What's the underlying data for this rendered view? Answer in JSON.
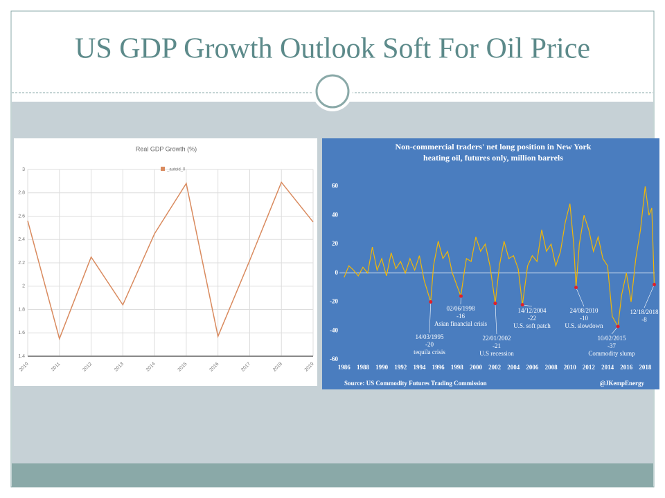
{
  "slide": {
    "title": "US GDP Growth Outlook Soft For Oil Price"
  },
  "chart_data": [
    {
      "type": "line",
      "title": "Real GDP Growth (%)",
      "x": [
        2010,
        2011,
        2012,
        2013,
        2014,
        2015,
        2016,
        2017,
        2018,
        2019
      ],
      "series": [
        {
          "name": "_autoid_0",
          "color": "#d98a5e",
          "values": [
            2.56,
            1.55,
            2.25,
            1.84,
            2.45,
            2.88,
            1.57,
            2.22,
            2.89,
            2.55
          ]
        }
      ],
      "xlim": [
        2010,
        2019
      ],
      "xticks": [
        2010,
        2011,
        2012,
        2013,
        2014,
        2015,
        2016,
        2017,
        2018,
        2019
      ],
      "ylim": [
        1.4,
        3
      ],
      "yticks": [
        1.4,
        1.6,
        1.8,
        2,
        2.2,
        2.4,
        2.6,
        2.8,
        3
      ],
      "grid": true
    },
    {
      "type": "line",
      "title": [
        "Non-commercial traders' net long position in New York",
        "heating oil, futures only, million barrels"
      ],
      "x": [
        1986,
        1986.5,
        1987,
        1987.5,
        1988,
        1988.5,
        1989,
        1989.5,
        1990,
        1990.5,
        1991,
        1991.5,
        1992,
        1992.5,
        1993,
        1993.5,
        1994,
        1994.5,
        1995.2,
        1995.5,
        1996,
        1996.5,
        1997,
        1997.5,
        1998.4,
        1998.8,
        1999,
        1999.5,
        2000,
        2000.5,
        2001,
        2001.5,
        2002.06,
        2002.5,
        2003,
        2003.5,
        2004,
        2004.5,
        2004.95,
        2005.5,
        2006,
        2006.5,
        2007,
        2007.5,
        2008,
        2008.5,
        2009,
        2009.5,
        2010,
        2010.4,
        2010.65,
        2011,
        2011.5,
        2012,
        2012.5,
        2013,
        2013.5,
        2014,
        2014.5,
        2015.1,
        2015.5,
        2016,
        2016.5,
        2017,
        2017.5,
        2018,
        2018.4,
        2018.7,
        2018.96
      ],
      "series": [
        {
          "color": "#f2b705",
          "values": [
            -3,
            5,
            2,
            -2,
            4,
            0,
            18,
            2,
            10,
            -2,
            14,
            3,
            8,
            0,
            10,
            2,
            12,
            -5,
            -20,
            5,
            22,
            10,
            15,
            0,
            -16,
            2,
            10,
            8,
            25,
            15,
            20,
            5,
            -21,
            5,
            22,
            10,
            12,
            3,
            -22,
            5,
            12,
            8,
            30,
            15,
            20,
            5,
            15,
            35,
            48,
            20,
            -10,
            20,
            40,
            30,
            15,
            25,
            10,
            5,
            -30,
            -37,
            -15,
            0,
            -20,
            10,
            30,
            60,
            40,
            45,
            -8
          ]
        }
      ],
      "xlim": [
        1985.5,
        2019
      ],
      "xticks": [
        1986,
        1988,
        1990,
        1992,
        1994,
        1996,
        1998,
        2000,
        2002,
        2004,
        2006,
        2008,
        2010,
        2012,
        2014,
        2016,
        2018
      ],
      "ylim": [
        -60,
        65
      ],
      "yticks": [
        -60,
        -40,
        -20,
        0,
        20,
        40,
        60
      ],
      "annotations": [
        {
          "date": "14/03/1995",
          "value": -20,
          "label": "tequila crisis"
        },
        {
          "date": "02/06/1998",
          "value": -16,
          "label": "Asian financial crisis"
        },
        {
          "date": "22/01/2002",
          "value": -21,
          "label": "U.S recession"
        },
        {
          "date": "14/12/2004",
          "value": -22,
          "label": "U.S. soft patch"
        },
        {
          "date": "24/08/2010",
          "value": -10,
          "label": "U.S. slowdown"
        },
        {
          "date": "10/02/2015",
          "value": -37,
          "label": "Commodity slump"
        },
        {
          "date": "12/18/2018",
          "value": -8
        }
      ],
      "source": "Source: US Commodity Futures Trading Commission",
      "credit": "@JKempEnergy"
    }
  ]
}
